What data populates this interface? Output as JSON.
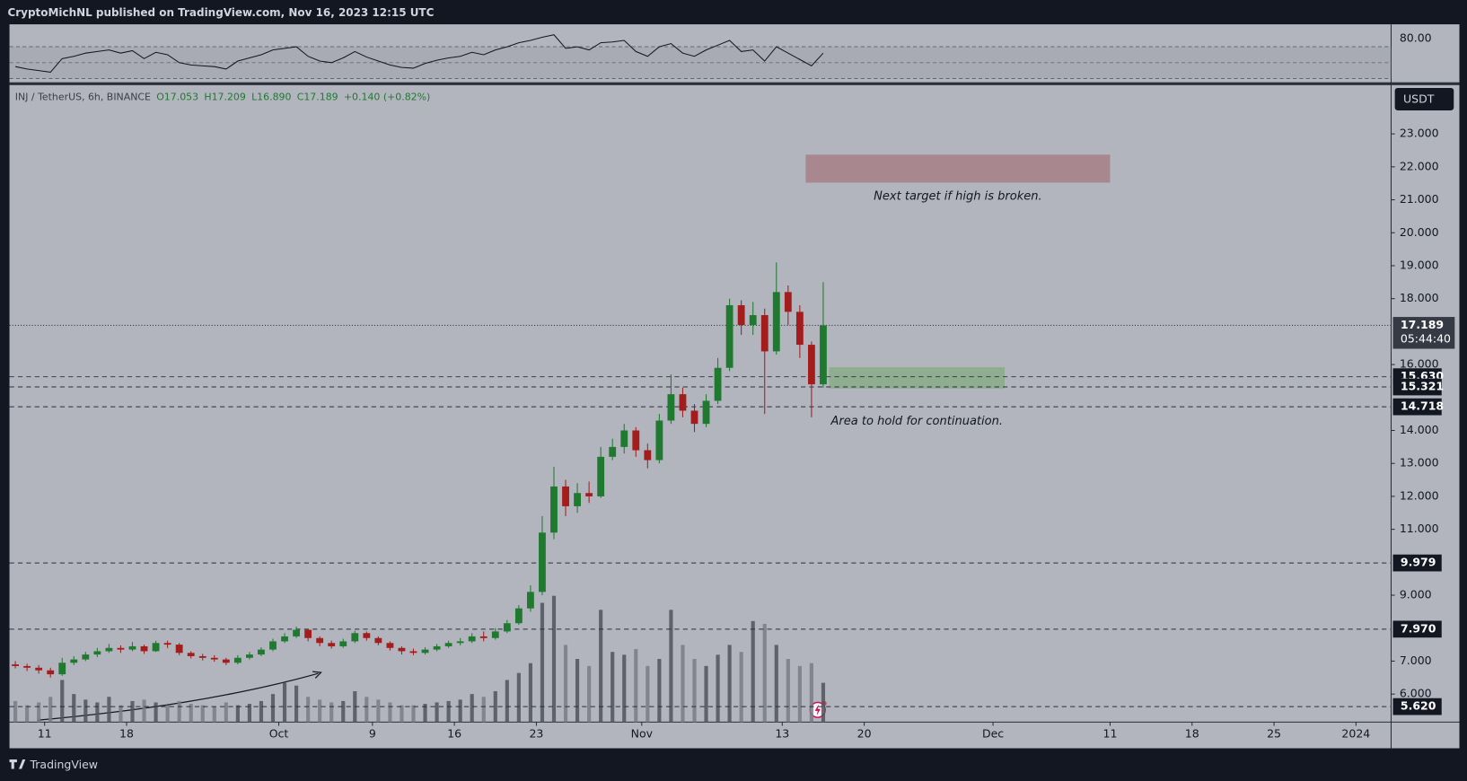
{
  "header": "CryptoMichNL published on TradingView.com, Nov 16, 2023 12:15 UTC",
  "footer": "TradingView",
  "chart_data": {
    "type": "candlestick",
    "legend": {
      "symbol": "INJ / TetherUS, 6h, BINANCE",
      "open": "O17.053",
      "high": "H17.209",
      "low": "L16.890",
      "close": "C17.189",
      "change": "+0.140 (+0.82%)"
    },
    "currency": "USDT",
    "x": [
      "2023-09-08",
      "2023-09-09",
      "2023-09-10",
      "2023-09-11",
      "2023-09-12",
      "2023-09-13",
      "2023-09-14",
      "2023-09-15",
      "2023-09-16",
      "2023-09-17",
      "2023-09-18",
      "2023-09-19",
      "2023-09-20",
      "2023-09-21",
      "2023-09-22",
      "2023-09-23",
      "2023-09-24",
      "2023-09-25",
      "2023-09-26",
      "2023-09-27",
      "2023-09-28",
      "2023-09-29",
      "2023-09-30",
      "2023-10-01",
      "2023-10-02",
      "2023-10-03",
      "2023-10-04",
      "2023-10-05",
      "2023-10-06",
      "2023-10-07",
      "2023-10-08",
      "2023-10-09",
      "2023-10-10",
      "2023-10-11",
      "2023-10-12",
      "2023-10-13",
      "2023-10-14",
      "2023-10-15",
      "2023-10-16",
      "2023-10-17",
      "2023-10-18",
      "2023-10-19",
      "2023-10-20",
      "2023-10-21",
      "2023-10-22",
      "2023-10-23",
      "2023-10-24",
      "2023-10-25",
      "2023-10-26",
      "2023-10-27",
      "2023-10-28",
      "2023-10-29",
      "2023-10-30",
      "2023-10-31",
      "2023-11-01",
      "2023-11-02",
      "2023-11-03",
      "2023-11-04",
      "2023-11-05",
      "2023-11-06",
      "2023-11-07",
      "2023-11-08",
      "2023-11-09",
      "2023-11-10",
      "2023-11-11",
      "2023-11-12",
      "2023-11-13",
      "2023-11-14",
      "2023-11-15",
      "2023-11-16"
    ],
    "open": [
      6.9,
      6.85,
      6.8,
      6.72,
      6.6,
      6.95,
      7.05,
      7.2,
      7.3,
      7.4,
      7.35,
      7.45,
      7.3,
      7.55,
      7.5,
      7.25,
      7.15,
      7.1,
      7.05,
      6.95,
      7.1,
      7.2,
      7.35,
      7.6,
      7.75,
      7.95,
      7.7,
      7.55,
      7.45,
      7.6,
      7.85,
      7.7,
      7.55,
      7.4,
      7.3,
      7.25,
      7.35,
      7.45,
      7.55,
      7.6,
      7.75,
      7.7,
      7.9,
      8.15,
      8.6,
      9.1,
      10.9,
      12.3,
      11.7,
      12.1,
      12.0,
      13.2,
      13.5,
      14.0,
      13.4,
      13.1,
      14.3,
      15.1,
      14.6,
      14.2,
      14.9,
      15.9,
      17.8,
      17.2,
      17.5,
      16.4,
      18.2,
      17.6,
      16.6,
      15.4
    ],
    "high": [
      7.0,
      6.92,
      6.88,
      6.8,
      7.1,
      7.15,
      7.28,
      7.4,
      7.52,
      7.48,
      7.58,
      7.5,
      7.62,
      7.62,
      7.55,
      7.3,
      7.22,
      7.18,
      7.1,
      7.18,
      7.28,
      7.42,
      7.68,
      7.85,
      8.05,
      7.98,
      7.75,
      7.62,
      7.68,
      7.92,
      7.9,
      7.75,
      7.6,
      7.45,
      7.38,
      7.42,
      7.52,
      7.62,
      7.7,
      7.85,
      7.9,
      8.0,
      8.25,
      8.7,
      9.3,
      11.4,
      12.9,
      12.5,
      12.4,
      12.45,
      13.5,
      13.75,
      14.2,
      14.1,
      13.6,
      14.5,
      15.7,
      15.3,
      14.8,
      15.1,
      16.2,
      18.0,
      17.95,
      17.9,
      17.7,
      19.1,
      18.4,
      17.8,
      16.7,
      18.5
    ],
    "low": [
      6.78,
      6.7,
      6.62,
      6.5,
      6.55,
      6.88,
      7.0,
      7.12,
      7.25,
      7.25,
      7.3,
      7.22,
      7.28,
      7.4,
      7.18,
      7.08,
      7.02,
      6.98,
      6.88,
      6.9,
      7.05,
      7.15,
      7.3,
      7.55,
      7.7,
      7.6,
      7.45,
      7.38,
      7.4,
      7.55,
      7.62,
      7.48,
      7.32,
      7.2,
      7.18,
      7.2,
      7.3,
      7.4,
      7.48,
      7.55,
      7.6,
      7.65,
      7.85,
      8.1,
      8.5,
      9.0,
      10.7,
      11.4,
      11.5,
      11.8,
      11.95,
      13.1,
      13.3,
      13.2,
      12.85,
      13.0,
      14.2,
      14.4,
      13.95,
      14.1,
      14.8,
      15.8,
      16.9,
      16.9,
      14.5,
      16.3,
      17.2,
      16.2,
      14.4,
      15.3
    ],
    "close": [
      6.85,
      6.8,
      6.72,
      6.6,
      6.95,
      7.05,
      7.2,
      7.3,
      7.4,
      7.35,
      7.45,
      7.3,
      7.55,
      7.5,
      7.25,
      7.15,
      7.1,
      7.05,
      6.95,
      7.1,
      7.2,
      7.35,
      7.6,
      7.75,
      7.95,
      7.7,
      7.55,
      7.45,
      7.6,
      7.85,
      7.7,
      7.55,
      7.4,
      7.3,
      7.25,
      7.35,
      7.45,
      7.55,
      7.6,
      7.75,
      7.7,
      7.9,
      8.15,
      8.6,
      9.1,
      10.9,
      12.3,
      11.7,
      12.1,
      12.0,
      13.2,
      13.5,
      14.0,
      13.4,
      13.1,
      14.3,
      15.1,
      14.6,
      14.2,
      14.9,
      15.9,
      17.8,
      17.2,
      17.5,
      16.4,
      18.2,
      17.6,
      16.6,
      15.4,
      17.19
    ],
    "volume": [
      15,
      12,
      14,
      18,
      30,
      20,
      16,
      14,
      18,
      12,
      15,
      16,
      14,
      12,
      15,
      13,
      12,
      11,
      14,
      12,
      13,
      15,
      20,
      28,
      26,
      18,
      16,
      14,
      15,
      22,
      18,
      16,
      14,
      12,
      12,
      13,
      14,
      15,
      16,
      20,
      18,
      22,
      30,
      35,
      42,
      85,
      90,
      55,
      45,
      40,
      80,
      50,
      48,
      52,
      40,
      45,
      80,
      55,
      45,
      40,
      48,
      55,
      50,
      72,
      70,
      55,
      45,
      40,
      42,
      28
    ],
    "volume_ylim": [
      0,
      100
    ],
    "rsi": [
      45,
      42,
      40,
      38,
      55,
      58,
      62,
      64,
      66,
      62,
      65,
      55,
      63,
      60,
      50,
      47,
      46,
      45,
      42,
      52,
      56,
      60,
      66,
      68,
      70,
      58,
      52,
      50,
      56,
      64,
      57,
      52,
      47,
      44,
      43,
      49,
      53,
      56,
      58,
      63,
      60,
      66,
      70,
      75,
      78,
      82,
      85,
      68,
      70,
      66,
      75,
      76,
      78,
      64,
      58,
      70,
      74,
      62,
      58,
      66,
      72,
      78,
      64,
      66,
      52,
      70,
      62,
      54,
      46,
      62
    ],
    "rsi_ylim": [
      25.3,
      98.2
    ],
    "rsi_yticks": [
      {
        "value": 80,
        "label": "80.00"
      }
    ],
    "rsi_levels": [
      70,
      50,
      30
    ],
    "up_color": "#1f7a30",
    "down_color": "#a31d1d",
    "xlim": [
      "2023-09-08",
      "2024-01-04"
    ],
    "xticks": [
      {
        "value": "2023-09-11",
        "label": "11"
      },
      {
        "value": "2023-09-18",
        "label": "18"
      },
      {
        "value": "2023-10-01",
        "label": "Oct"
      },
      {
        "value": "2023-10-09",
        "label": "9"
      },
      {
        "value": "2023-10-16",
        "label": "16"
      },
      {
        "value": "2023-10-23",
        "label": "23"
      },
      {
        "value": "2023-11-01",
        "label": "Nov"
      },
      {
        "value": "2023-11-13",
        "label": "13"
      },
      {
        "value": "2023-11-20",
        "label": "20"
      },
      {
        "value": "2023-12-01",
        "label": "Dec"
      },
      {
        "value": "2023-12-11",
        "label": "11"
      },
      {
        "value": "2023-12-18",
        "label": "18"
      },
      {
        "value": "2023-12-25",
        "label": "25"
      },
      {
        "value": "2024-01-01",
        "label": "2024"
      }
    ],
    "ylim": [
      5.15,
      24.48
    ],
    "yticks": [
      {
        "value": 6,
        "label": "6.000"
      },
      {
        "value": 7,
        "label": "7.000"
      },
      {
        "value": 9,
        "label": "9.000"
      },
      {
        "value": 11,
        "label": "11.000"
      },
      {
        "value": 12,
        "label": "12.000"
      },
      {
        "value": 13,
        "label": "13.000"
      },
      {
        "value": 14,
        "label": "14.000"
      },
      {
        "value": 16,
        "label": "16.000"
      },
      {
        "value": 18,
        "label": "18.000"
      },
      {
        "value": 19,
        "label": "19.000"
      },
      {
        "value": 20,
        "label": "20.000"
      },
      {
        "value": 21,
        "label": "21.000"
      },
      {
        "value": 22,
        "label": "22.000"
      },
      {
        "value": 23,
        "label": "23.000"
      }
    ],
    "levels": [
      {
        "value": 15.63,
        "label": "15.630"
      },
      15.321,
      14.718,
      9.979,
      {
        "value": 7.97,
        "label": "7.970"
      },
      {
        "value": 5.62,
        "label": "5.620"
      }
    ],
    "last_price": {
      "value": 17.189,
      "countdown": "05:44:40"
    },
    "zones": [
      {
        "x": [
          "2023-11-15",
          "2023-12-11"
        ],
        "y": [
          22.37,
          21.52
        ],
        "color": "#a8878f",
        "label": "Next target if high is broken."
      },
      {
        "x": [
          "2023-11-17",
          "2023-12-02"
        ],
        "y": [
          15.92,
          15.27
        ],
        "color": "#8fae8f",
        "label": "Area to hold for continuation."
      }
    ]
  }
}
